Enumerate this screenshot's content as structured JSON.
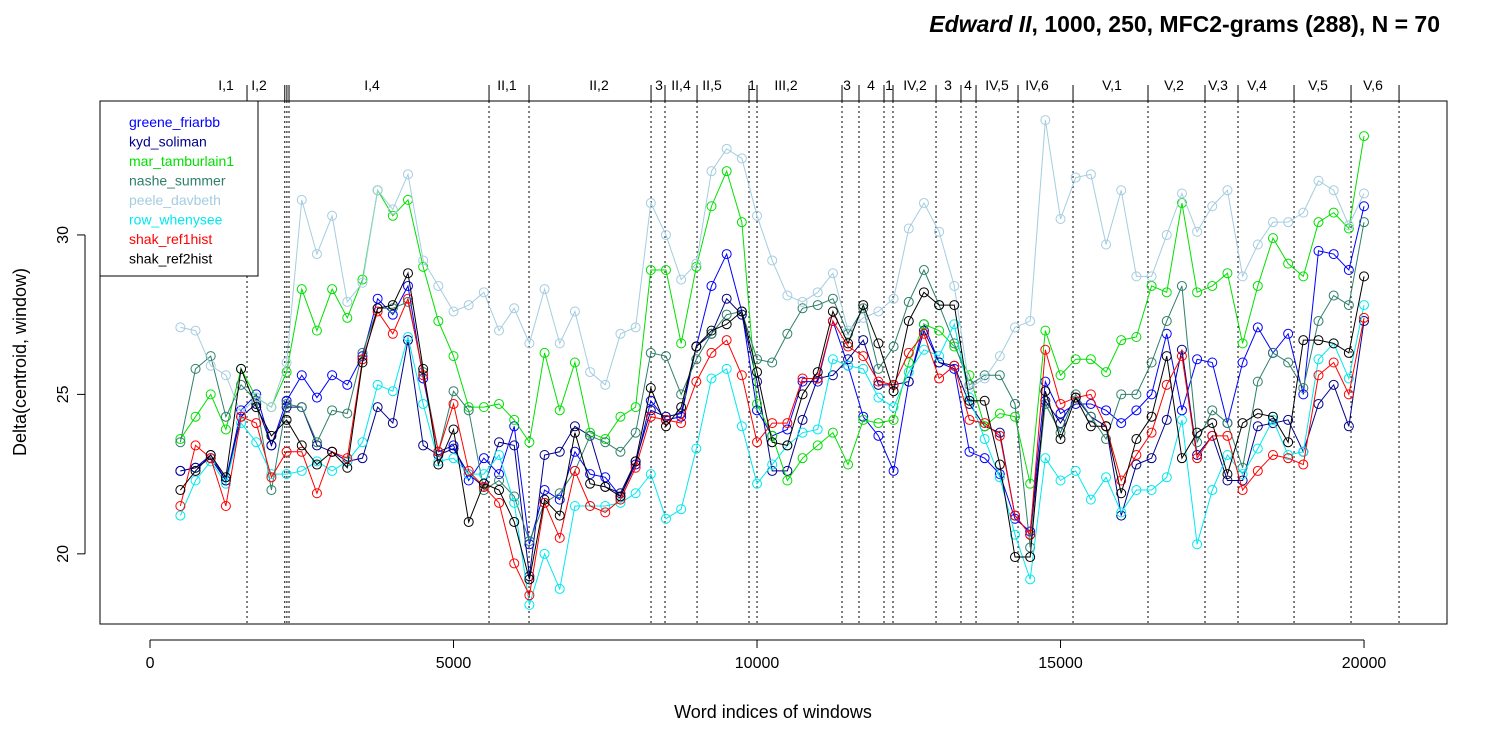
{
  "chart_data": {
    "type": "line",
    "title_italic": "Edward II",
    "title_rest": ", 1000, 250, MFC2-grams (288), N = 70",
    "xlabel": "Word indices of windows",
    "ylabel": "Delta(centroid, window)",
    "xlim": [
      -824,
      21367
    ],
    "ylim": [
      17.8,
      34.2
    ],
    "xticks": [
      0,
      5000,
      10000,
      15000,
      20000
    ],
    "yticks": [
      20,
      25,
      30
    ],
    "legend": "top-left",
    "scene_boundaries": [
      1598,
      2220,
      2255,
      2290,
      5585,
      6244,
      8254,
      8484,
      9012,
      9868,
      10000,
      11400,
      11680,
      12092,
      12240,
      12949,
      13360,
      13608,
      14300,
      15206,
      16441,
      17380,
      17924,
      18847,
      19786,
      20577
    ],
    "scenes": [
      {
        "label": "I,1",
        "x": 1252
      },
      {
        "label": "I,2",
        "x": 1796
      },
      {
        "label": "I,4",
        "x": 3657
      },
      {
        "label": "II,1",
        "x": 5881
      },
      {
        "label": "II,2",
        "x": 7397
      },
      {
        "label": "3",
        "x": 8386
      },
      {
        "label": "II,4",
        "x": 8748
      },
      {
        "label": "II,5",
        "x": 9259
      },
      {
        "label": "1",
        "x": 9918
      },
      {
        "label": "III,2",
        "x": 10478
      },
      {
        "label": "3",
        "x": 11483
      },
      {
        "label": "4",
        "x": 11878
      },
      {
        "label": "1",
        "x": 12175
      },
      {
        "label": "IV,2",
        "x": 12603
      },
      {
        "label": "3",
        "x": 13147
      },
      {
        "label": "4",
        "x": 13476
      },
      {
        "label": "IV,5",
        "x": 13954
      },
      {
        "label": "IV,6",
        "x": 14613
      },
      {
        "label": "V,1",
        "x": 15848
      },
      {
        "label": "V,2",
        "x": 16870
      },
      {
        "label": "V,3",
        "x": 17595
      },
      {
        "label": "V,4",
        "x": 18237
      },
      {
        "label": "V,5",
        "x": 19242
      },
      {
        "label": "V,6",
        "x": 20148
      }
    ],
    "x": [
      500,
      750,
      1000,
      1250,
      1500,
      1750,
      2000,
      2250,
      2500,
      2750,
      3000,
      3250,
      3500,
      3750,
      4000,
      4250,
      4500,
      4750,
      5000,
      5250,
      5500,
      5750,
      6000,
      6250,
      6500,
      6750,
      7000,
      7250,
      7500,
      7750,
      8000,
      8250,
      8500,
      8750,
      9000,
      9250,
      9500,
      9750,
      10000,
      10250,
      10500,
      10750,
      11000,
      11250,
      11500,
      11750,
      12000,
      12250,
      12500,
      12750,
      13000,
      13250,
      13500,
      13750,
      14000,
      14250,
      14500,
      14750,
      15000,
      15250,
      15500,
      15750,
      16000,
      16250,
      16500,
      16750,
      17000,
      17250,
      17500,
      17750,
      18000,
      18250,
      18500,
      18750,
      19000,
      19250,
      19500,
      19750,
      20000
    ],
    "series": [
      {
        "name": "greene_friarbb",
        "color": "#0000ff",
        "values": [
          22.6,
          22.7,
          23.1,
          22.3,
          24.5,
          25.0,
          23.4,
          24.8,
          25.6,
          24.9,
          25.6,
          25.3,
          26.2,
          28.0,
          27.5,
          28.4,
          25.5,
          23.2,
          23.4,
          22.3,
          23.0,
          22.5,
          24.0,
          20.3,
          22.0,
          21.7,
          23.2,
          22.5,
          22.4,
          21.8,
          22.8,
          24.8,
          24.2,
          24.3,
          26.5,
          28.4,
          29.4,
          27.6,
          24.5,
          23.7,
          23.9,
          25.4,
          25.4,
          27.3,
          25.9,
          24.3,
          23.7,
          22.6,
          25.4,
          27.2,
          26.0,
          25.8,
          23.2,
          23.0,
          22.5,
          21.1,
          20.7,
          25.4,
          24.4,
          24.7,
          24.7,
          24.5,
          24.1,
          24.5,
          25.0,
          26.9,
          24.5,
          26.1,
          26.0,
          24.1,
          26.0,
          27.1,
          26.3,
          26.9,
          25.0,
          29.5,
          29.4,
          28.9,
          30.9
        ]
      },
      {
        "name": "kyd_soliman",
        "color": "#00008b",
        "values": [
          22.6,
          22.7,
          23.0,
          22.3,
          24.3,
          24.7,
          23.4,
          24.6,
          24.6,
          23.4,
          23.2,
          22.9,
          23.0,
          24.6,
          24.1,
          26.7,
          23.4,
          23.1,
          23.3,
          22.5,
          22.1,
          23.5,
          23.4,
          19.3,
          23.1,
          23.2,
          24.0,
          23.7,
          22.1,
          21.9,
          22.9,
          24.5,
          24.3,
          24.4,
          26.5,
          26.9,
          28.0,
          27.5,
          25.4,
          22.6,
          22.6,
          24.2,
          25.5,
          25.6,
          26.1,
          26.7,
          25.3,
          25.3,
          25.4,
          27.0,
          26.0,
          25.9,
          24.7,
          24.0,
          23.8,
          21.2,
          20.6,
          24.8,
          24.1,
          24.9,
          24.3,
          24.0,
          21.2,
          22.8,
          23.0,
          24.2,
          26.4,
          23.1,
          23.7,
          22.3,
          22.3,
          24.0,
          24.1,
          24.2,
          23.2,
          24.7,
          25.3,
          24.0,
          27.3
        ]
      },
      {
        "name": "mar_tamburlain1",
        "color": "#00e000",
        "values": [
          23.6,
          24.3,
          25.0,
          23.9,
          25.8,
          24.9,
          24.6,
          25.7,
          28.3,
          27.0,
          28.3,
          27.4,
          28.6,
          31.4,
          30.6,
          31.1,
          29.0,
          27.3,
          26.2,
          24.6,
          24.6,
          24.7,
          24.2,
          23.5,
          26.3,
          24.5,
          26.0,
          23.8,
          23.6,
          24.3,
          24.6,
          28.9,
          28.9,
          26.6,
          29.0,
          30.9,
          32.0,
          30.4,
          24.7,
          23.7,
          22.3,
          23.0,
          23.4,
          23.8,
          22.8,
          24.2,
          24.1,
          24.2,
          26.0,
          27.2,
          27.0,
          26.5,
          25.6,
          24.0,
          24.4,
          24.3,
          22.2,
          27.0,
          25.6,
          26.1,
          26.1,
          25.7,
          26.7,
          26.8,
          28.4,
          28.2,
          31.0,
          28.2,
          28.4,
          28.8,
          26.6,
          28.4,
          29.9,
          29.1,
          28.7,
          30.4,
          30.7,
          30.2,
          33.1
        ]
      },
      {
        "name": "nashe_summer",
        "color": "#2e7f6a",
        "values": [
          23.5,
          25.8,
          26.2,
          24.3,
          25.3,
          24.8,
          22.0,
          24.7,
          24.6,
          23.5,
          24.5,
          24.4,
          26.3,
          27.7,
          27.7,
          27.9,
          25.7,
          23.2,
          25.1,
          24.5,
          22.0,
          22.3,
          21.8,
          20.4,
          21.6,
          21.9,
          22.6,
          23.7,
          23.5,
          23.2,
          23.8,
          26.3,
          26.2,
          25.0,
          26.1,
          26.9,
          27.5,
          27.6,
          26.1,
          26.0,
          26.9,
          27.7,
          27.8,
          28.0,
          26.9,
          27.7,
          25.8,
          26.5,
          27.9,
          28.9,
          27.8,
          26.6,
          25.3,
          25.6,
          25.6,
          24.7,
          20.2,
          24.7,
          23.8,
          25.0,
          24.3,
          23.6,
          25.0,
          25.0,
          26.0,
          27.3,
          28.4,
          23.5,
          24.5,
          24.1,
          22.7,
          25.4,
          26.3,
          26.0,
          25.2,
          27.3,
          28.1,
          27.8,
          30.4
        ]
      },
      {
        "name": "peele_davbeth",
        "color": "#a4cde0",
        "values": [
          27.1,
          27.0,
          25.9,
          25.6,
          24.4,
          24.9,
          24.6,
          26.0,
          31.1,
          29.4,
          30.6,
          27.9,
          28.5,
          31.4,
          30.8,
          31.9,
          29.2,
          28.4,
          27.6,
          27.8,
          28.2,
          27.0,
          27.7,
          26.6,
          28.3,
          26.6,
          27.6,
          25.7,
          25.3,
          26.9,
          27.1,
          31.0,
          30.0,
          28.6,
          29.1,
          32.0,
          32.7,
          32.4,
          30.6,
          29.2,
          28.1,
          27.9,
          28.2,
          28.8,
          27.0,
          27.4,
          27.6,
          28.0,
          30.2,
          31.0,
          30.1,
          28.4,
          25.2,
          25.5,
          26.2,
          27.1,
          27.3,
          33.6,
          30.5,
          31.8,
          31.9,
          29.7,
          31.4,
          28.7,
          28.7,
          30.0,
          31.3,
          30.1,
          30.9,
          31.4,
          28.7,
          29.7,
          30.4,
          30.4,
          30.7,
          31.7,
          31.4,
          30.3,
          31.3
        ]
      },
      {
        "name": "row_whenysee",
        "color": "#00e8f0",
        "values": [
          21.2,
          22.3,
          22.9,
          22.2,
          24.1,
          23.5,
          22.5,
          22.5,
          22.6,
          22.9,
          22.6,
          22.9,
          23.5,
          25.3,
          25.1,
          26.8,
          24.7,
          22.9,
          23.0,
          22.5,
          22.5,
          23.1,
          21.6,
          18.4,
          20.0,
          18.9,
          21.5,
          21.5,
          21.5,
          21.6,
          21.9,
          22.5,
          21.1,
          21.4,
          23.3,
          25.5,
          25.8,
          24.0,
          22.2,
          22.8,
          23.4,
          23.8,
          23.9,
          26.1,
          25.9,
          25.8,
          24.9,
          24.6,
          25.7,
          26.4,
          26.2,
          27.2,
          24.9,
          23.6,
          22.4,
          20.6,
          19.2,
          23.0,
          22.3,
          22.6,
          21.7,
          22.4,
          21.3,
          22.0,
          22.0,
          22.4,
          24.2,
          20.3,
          22.0,
          23.1,
          22.5,
          23.3,
          24.2,
          23.1,
          23.2,
          26.1,
          26.6,
          25.5,
          27.8
        ]
      },
      {
        "name": "shak_ref1hist",
        "color": "#ff0000",
        "values": [
          21.5,
          23.4,
          23.0,
          21.5,
          24.3,
          24.1,
          22.4,
          23.2,
          23.2,
          21.9,
          23.2,
          23.0,
          26.1,
          27.6,
          26.9,
          28.0,
          25.6,
          23.2,
          24.7,
          22.6,
          22.1,
          21.6,
          19.7,
          18.7,
          21.6,
          20.5,
          22.6,
          21.5,
          21.3,
          21.7,
          22.7,
          24.3,
          24.2,
          24.1,
          25.4,
          26.3,
          26.7,
          25.6,
          23.5,
          24.1,
          24.1,
          25.5,
          25.5,
          27.3,
          26.5,
          26.2,
          25.4,
          25.3,
          26.3,
          26.9,
          25.5,
          25.9,
          24.2,
          24.1,
          23.7,
          21.2,
          20.6,
          26.4,
          24.7,
          24.9,
          25.0,
          24.0,
          22.3,
          23.1,
          23.8,
          25.3,
          26.2,
          23.0,
          23.7,
          23.7,
          22.0,
          22.6,
          23.1,
          23.0,
          22.8,
          25.6,
          26.0,
          25.0,
          27.4
        ]
      },
      {
        "name": "shak_ref2hist",
        "color": "#000000",
        "values": [
          22.0,
          22.6,
          23.1,
          22.4,
          25.8,
          24.6,
          23.7,
          24.2,
          23.4,
          22.8,
          23.2,
          22.7,
          26.0,
          27.7,
          27.8,
          28.8,
          25.8,
          22.8,
          23.9,
          21.0,
          22.2,
          22.0,
          21.0,
          19.2,
          21.7,
          21.2,
          23.8,
          22.2,
          22.1,
          21.8,
          22.9,
          25.2,
          24.0,
          24.6,
          26.5,
          27.0,
          27.2,
          27.6,
          25.7,
          23.5,
          23.4,
          25.0,
          25.7,
          27.6,
          26.6,
          27.8,
          26.6,
          25.1,
          27.3,
          28.2,
          27.8,
          27.8,
          24.8,
          24.8,
          22.8,
          19.9,
          19.9,
          25.1,
          23.6,
          24.9,
          24.0,
          24.0,
          21.9,
          23.6,
          24.3,
          26.2,
          23.0,
          23.8,
          24.1,
          22.5,
          24.1,
          24.4,
          24.3,
          23.5,
          26.7,
          26.7,
          26.6,
          26.3,
          28.7
        ]
      }
    ]
  }
}
